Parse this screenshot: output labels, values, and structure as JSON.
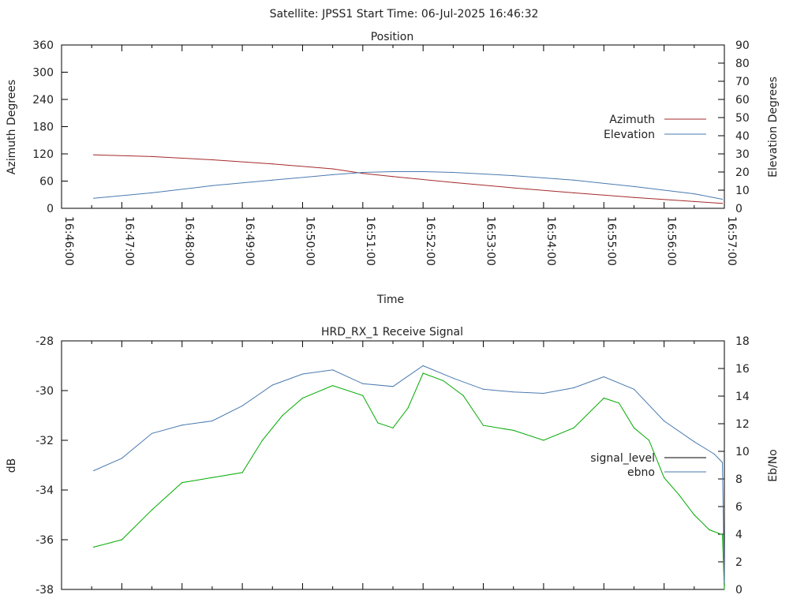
{
  "header": {
    "title": "Satellite: JPSS1    Start Time: 06-Jul-2025 16:46:32"
  },
  "chart_data": [
    {
      "type": "line",
      "title": "Position",
      "xlabel": "Time",
      "ylabel": "Azimuth Degrees",
      "y2label": "Elevation Degrees",
      "x_ticks": [
        "16:46:00",
        "16:47:00",
        "16:48:00",
        "16:49:00",
        "16:50:00",
        "16:51:00",
        "16:52:00",
        "16:53:00",
        "16:54:00",
        "16:55:00",
        "16:56:00",
        "16:57:00"
      ],
      "xlim": [
        "16:46:00",
        "16:57:00"
      ],
      "ylim": [
        0,
        360
      ],
      "y_ticks": [
        "0",
        "60",
        "120",
        "180",
        "240",
        "300",
        "360"
      ],
      "y2lim": [
        0,
        90
      ],
      "y2_ticks": [
        "0",
        "10",
        "20",
        "30",
        "40",
        "50",
        "60",
        "70",
        "80",
        "90"
      ],
      "legend_position": "right",
      "grid": false,
      "series": [
        {
          "name": "Azimuth",
          "axis": "left",
          "color": "#a52a2a",
          "x": [
            "16:46:32",
            "16:47:30",
            "16:48:30",
            "16:49:30",
            "16:50:30",
            "16:51:00",
            "16:51:30",
            "16:52:30",
            "16:53:30",
            "16:54:30",
            "16:55:30",
            "16:56:30",
            "16:56:58"
          ],
          "y": [
            118,
            114,
            107,
            98,
            87,
            77,
            70,
            57,
            45,
            34,
            24,
            15,
            11
          ]
        },
        {
          "name": "Elevation",
          "axis": "right",
          "color": "#4a7ab0",
          "x": [
            "16:46:32",
            "16:47:30",
            "16:48:30",
            "16:49:30",
            "16:50:30",
            "16:51:00",
            "16:51:30",
            "16:52:00",
            "16:52:30",
            "16:53:30",
            "16:54:30",
            "16:55:30",
            "16:56:30",
            "16:56:58"
          ],
          "y": [
            5.5,
            8.5,
            12.5,
            15.5,
            18.5,
            19.8,
            20.2,
            20.2,
            19.8,
            18,
            15.5,
            12,
            8,
            5
          ]
        }
      ]
    },
    {
      "type": "line",
      "title": "HRD_RX_1 Receive Signal",
      "ylabel": "dB",
      "y2label": "Eb/No",
      "xlim": [
        "16:46:00",
        "16:57:00"
      ],
      "ylim": [
        -38,
        -28
      ],
      "y_ticks": [
        "-28",
        "-30",
        "-32",
        "-34",
        "-36",
        "-38"
      ],
      "y2lim": [
        0,
        18
      ],
      "y2_ticks": [
        "0",
        "2",
        "4",
        "6",
        "8",
        "10",
        "12",
        "14",
        "16",
        "18"
      ],
      "legend_position": "right",
      "grid": false,
      "series": [
        {
          "name": "signal_level",
          "axis": "left",
          "color": "#00aa00",
          "x": [
            "16:46:32",
            "16:47:00",
            "16:47:30",
            "16:48:00",
            "16:48:30",
            "16:49:00",
            "16:49:20",
            "16:49:40",
            "16:50:00",
            "16:50:30",
            "16:51:00",
            "16:51:15",
            "16:51:30",
            "16:51:45",
            "16:52:00",
            "16:52:20",
            "16:52:40",
            "16:53:00",
            "16:53:30",
            "16:54:00",
            "16:54:30",
            "16:55:00",
            "16:55:15",
            "16:55:30",
            "16:55:45",
            "16:56:00",
            "16:56:15",
            "16:56:30",
            "16:56:45",
            "16:56:58",
            "16:57:00"
          ],
          "y": [
            -36.3,
            -36.0,
            -34.8,
            -33.7,
            -33.5,
            -33.3,
            -32.0,
            -31.0,
            -30.3,
            -29.8,
            -30.2,
            -31.3,
            -31.5,
            -30.7,
            -29.3,
            -29.6,
            -30.2,
            -31.4,
            -31.6,
            -32.0,
            -31.5,
            -30.3,
            -30.5,
            -31.5,
            -32.0,
            -33.5,
            -34.2,
            -35.0,
            -35.6,
            -35.8,
            -38.0
          ]
        },
        {
          "name": "ebno",
          "axis": "right",
          "color": "#4a7ab0",
          "x": [
            "16:46:32",
            "16:47:00",
            "16:47:30",
            "16:48:00",
            "16:48:30",
            "16:49:00",
            "16:49:30",
            "16:50:00",
            "16:50:30",
            "16:51:00",
            "16:51:30",
            "16:52:00",
            "16:52:30",
            "16:53:00",
            "16:53:30",
            "16:54:00",
            "16:54:30",
            "16:55:00",
            "16:55:30",
            "16:56:00",
            "16:56:30",
            "16:56:50",
            "16:56:58",
            "16:57:00"
          ],
          "y": [
            8.6,
            9.5,
            11.3,
            11.9,
            12.2,
            13.3,
            14.8,
            15.6,
            15.9,
            14.9,
            14.7,
            16.2,
            15.3,
            14.5,
            14.3,
            14.2,
            14.6,
            15.4,
            14.5,
            12.2,
            10.7,
            9.8,
            9.2,
            0.5
          ]
        }
      ]
    }
  ]
}
